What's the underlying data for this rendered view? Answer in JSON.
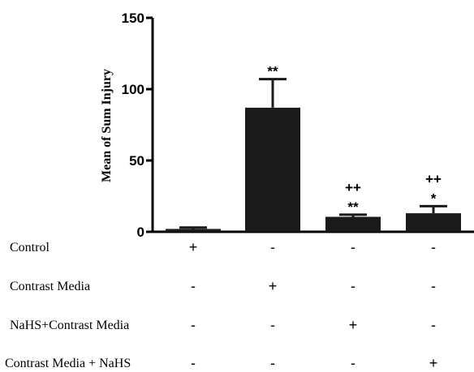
{
  "chart_data": {
    "type": "bar",
    "ylabel": "Mean of Sum Injury",
    "ylim": [
      0,
      150
    ],
    "yticks": [
      0,
      50,
      100,
      150
    ],
    "values": [
      2,
      87,
      10.5,
      13
    ],
    "errors": [
      1,
      20,
      1.5,
      5
    ],
    "significance": [
      {
        "top": "",
        "bottom": ""
      },
      {
        "top": "",
        "bottom": "**"
      },
      {
        "top": "++",
        "bottom": "**"
      },
      {
        "top": "++",
        "bottom": "*"
      }
    ],
    "bar_color": "#1a1a1a",
    "grid": false,
    "treatment_rows": [
      {
        "label": "Control",
        "marks": [
          "+",
          "-",
          "-",
          "-"
        ]
      },
      {
        "label": "Contrast Media",
        "marks": [
          "-",
          "+",
          "-",
          "-"
        ]
      },
      {
        "label": "NaHS+Contrast Media",
        "marks": [
          "-",
          "-",
          "+",
          "-"
        ]
      },
      {
        "label": "Contrast Media + NaHS",
        "marks": [
          "-",
          "-",
          "-",
          "+"
        ]
      }
    ]
  }
}
